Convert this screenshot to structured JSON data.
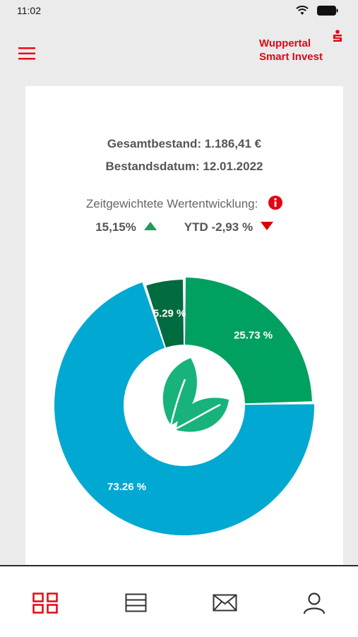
{
  "status_bar": {
    "time": "11:02",
    "icons": [
      "wifi-icon",
      "battery-icon"
    ]
  },
  "header": {
    "brand_line1": "Wuppertal",
    "brand_line2": "Smart Invest",
    "menu_icon": "hamburger-menu-icon",
    "logo_icon": "sparkasse-logo-icon"
  },
  "summary": {
    "total": "Gesamtbestand: 1.186,41 €",
    "date": "Bestandsdatum: 12.01.2022"
  },
  "performance": {
    "label": "Zeitgewichtete Wertentwicklung:",
    "total_value": "15,15%",
    "total_trend": "up",
    "ytd_value": "YTD -2,93 %",
    "ytd_trend": "down"
  },
  "colors": {
    "brand_red": "#e30613",
    "slice_blue": "#00a8d2",
    "slice_green": "#00a060",
    "slice_dark_green": "#006b3f",
    "up_green": "#1f9a5b",
    "down_red": "#d60000"
  },
  "chart_data": {
    "type": "pie",
    "slices": [
      {
        "label": "25.73 %",
        "value": 25.73,
        "color": "#00a060"
      },
      {
        "label": "73.26 %",
        "value": 73.26,
        "color": "#00a8d2"
      },
      {
        "label": "5.29 %",
        "value": 5.29,
        "color": "#006b3f"
      }
    ],
    "center_icon": "leaf-icon"
  },
  "tabbar": {
    "items": [
      {
        "name": "dashboard",
        "icon": "grid-icon",
        "active": true
      },
      {
        "name": "list",
        "icon": "list-icon",
        "active": false
      },
      {
        "name": "messages",
        "icon": "mail-icon",
        "active": false
      },
      {
        "name": "profile",
        "icon": "user-icon",
        "active": false
      }
    ]
  }
}
